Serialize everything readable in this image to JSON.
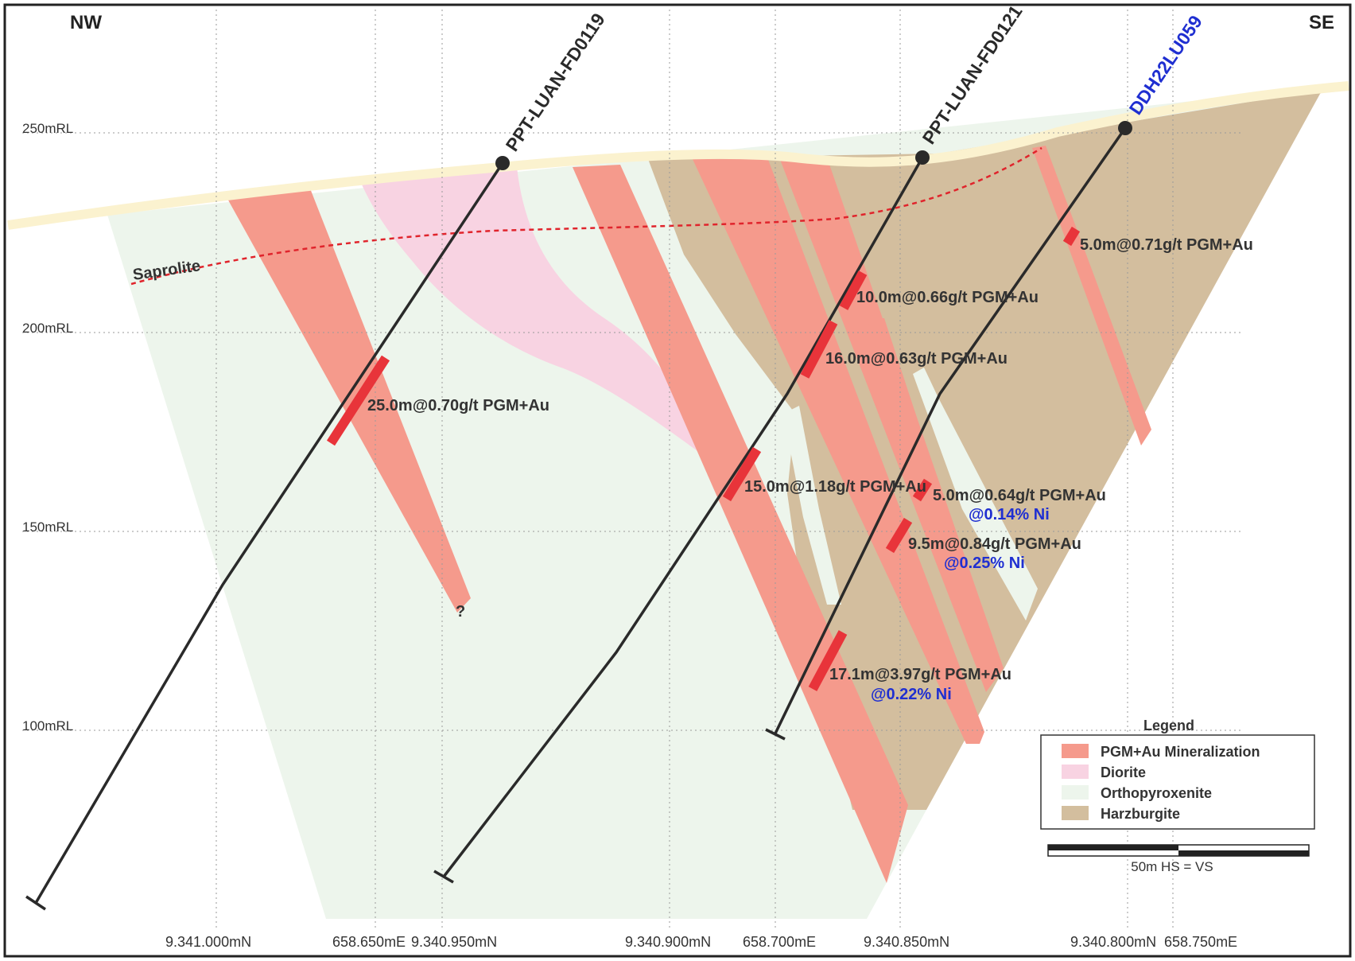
{
  "orientation": {
    "left": "NW",
    "right": "SE"
  },
  "elevation_labels": [
    "250mRL",
    "200mRL",
    "150mRL",
    "100mRL"
  ],
  "northing_labels": [
    "9.341.000mN",
    "9.340.950mN",
    "9.340.900mN",
    "9.340.850mN",
    "9.340.800mN"
  ],
  "easting_labels": [
    "658.650mE",
    "658.700mE",
    "658.750mE"
  ],
  "saprolite_label": "Saprolite",
  "drillholes": [
    {
      "name": "PPT-LUAN-FD0119",
      "color": "#2a2a2a"
    },
    {
      "name": "PPT-LUAN-FD0121",
      "color": "#2a2a2a"
    },
    {
      "name": "DDH22LU059",
      "color": "#1f2fd1"
    }
  ],
  "intercepts": [
    {
      "text": "25.0m@0.70g/t PGM+Au",
      "ni": ""
    },
    {
      "text": "10.0m@0.66g/t PGM+Au",
      "ni": ""
    },
    {
      "text": "16.0m@0.63g/t PGM+Au",
      "ni": ""
    },
    {
      "text": "15.0m@1.18g/t PGM+Au",
      "ni": ""
    },
    {
      "text": "5.0m@0.71g/t PGM+Au",
      "ni": ""
    },
    {
      "text": "5.0m@0.64g/t PGM+Au",
      "ni": "@0.14% Ni"
    },
    {
      "text": "9.5m@0.84g/t PGM+Au",
      "ni": "@0.25% Ni"
    },
    {
      "text": "17.1m@3.97g/t PGM+Au",
      "ni": "@0.22% Ni"
    }
  ],
  "question_mark": "?",
  "legend": {
    "title": "Legend",
    "items": [
      {
        "label": "PGM+Au Mineralization",
        "color": "#f59a8c"
      },
      {
        "label": "Diorite",
        "color": "#f8d3e2"
      },
      {
        "label": "Orthopyroxenite",
        "color": "#edf5ec"
      },
      {
        "label": "Harzburgite",
        "color": "#d3be9e"
      }
    ]
  },
  "scale_bar": {
    "label": "50m  HS = VS"
  },
  "colors": {
    "surface": "#fbf2cf",
    "intercept": "#e8343a",
    "saprolite_line": "#e0242c",
    "grid": "#9a9a9a"
  }
}
